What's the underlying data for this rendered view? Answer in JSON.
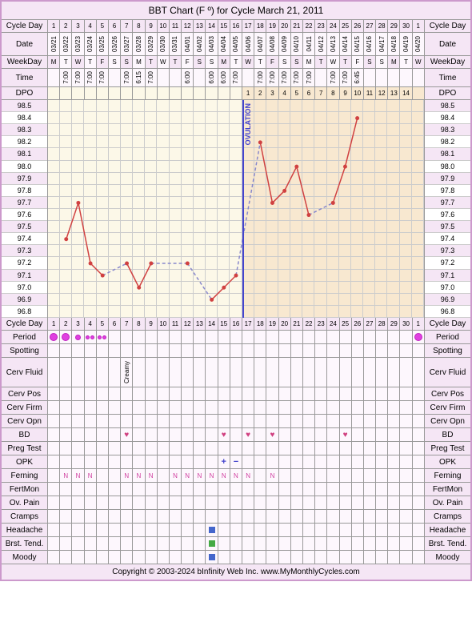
{
  "title": "BBT Chart (F º) for Cycle March 21, 2011",
  "labels": {
    "cycleDay": "Cycle Day",
    "date": "Date",
    "weekday": "WeekDay",
    "time": "Time",
    "dpo": "DPO",
    "period": "Period",
    "spotting": "Spotting",
    "cervFluid": "Cerv Fluid",
    "cervPos": "Cerv Pos",
    "cervFirm": "Cerv Firm",
    "cervOpn": "Cerv Opn",
    "bd": "BD",
    "pregTest": "Preg Test",
    "opk": "OPK",
    "ferning": "Ferning",
    "fertMon": "FertMon",
    "ovPain": "Ov. Pain",
    "cramps": "Cramps",
    "headache": "Headache",
    "brstTend": "Brst. Tend.",
    "moody": "Moody"
  },
  "footer": "Copyright © 2003-2024 bInfinity Web Inc.    www.MyMonthlyCycles.com",
  "days": 31,
  "cycleDays": [
    "1",
    "2",
    "3",
    "4",
    "5",
    "6",
    "7",
    "8",
    "9",
    "10",
    "11",
    "12",
    "13",
    "14",
    "15",
    "16",
    "17",
    "18",
    "19",
    "20",
    "21",
    "22",
    "23",
    "24",
    "25",
    "26",
    "27",
    "28",
    "29",
    "30",
    "1"
  ],
  "dates": [
    "03/21",
    "03/22",
    "03/23",
    "03/24",
    "03/25",
    "03/26",
    "03/27",
    "03/28",
    "03/29",
    "03/30",
    "03/31",
    "04/01",
    "04/02",
    "04/03",
    "04/04",
    "04/05",
    "04/06",
    "04/07",
    "04/08",
    "04/09",
    "04/10",
    "04/11",
    "04/12",
    "04/13",
    "04/14",
    "04/15",
    "04/16",
    "04/17",
    "04/18",
    "04/19",
    "04/20"
  ],
  "weekdays": [
    "M",
    "T",
    "W",
    "T",
    "F",
    "S",
    "S",
    "M",
    "T",
    "W",
    "T",
    "F",
    "S",
    "S",
    "M",
    "T",
    "W",
    "T",
    "F",
    "S",
    "S",
    "M",
    "T",
    "W",
    "T",
    "F",
    "S",
    "S",
    "M",
    "T",
    "W"
  ],
  "times": [
    "",
    "7:00",
    "7:00",
    "7:00",
    "7:00",
    "",
    "7:00",
    "6:15",
    "7:00",
    "",
    "",
    "6:00",
    "",
    "6:00",
    "6:00",
    "7:00",
    "",
    "7:00",
    "7:00",
    "7:00",
    "7:00",
    "7:00",
    "",
    "7:00",
    "7:00",
    "6:45",
    "",
    "",
    "",
    "",
    ""
  ],
  "dpo": [
    "",
    "",
    "",
    "",
    "",
    "",
    "",
    "",
    "",
    "",
    "",
    "",
    "",
    "",
    "",
    "",
    "1",
    "2",
    "3",
    "4",
    "5",
    "6",
    "7",
    "8",
    "9",
    "10",
    "11",
    "12",
    "13",
    "14",
    ""
  ],
  "temps": {
    "ymin": 96.8,
    "ymax": 98.5,
    "step": 0.1,
    "labels": [
      "98.5",
      "98.4",
      "98.3",
      "98.2",
      "98.1",
      "98.0",
      "97.9",
      "97.8",
      "97.7",
      "97.6",
      "97.5",
      "97.4",
      "97.3",
      "97.2",
      "97.1",
      "97.0",
      "96.9",
      "96.8"
    ],
    "values": [
      null,
      97.4,
      97.7,
      97.2,
      97.1,
      null,
      97.2,
      97.0,
      97.2,
      null,
      null,
      97.2,
      null,
      96.9,
      97.0,
      97.1,
      null,
      98.2,
      97.7,
      97.8,
      98.0,
      97.6,
      null,
      97.7,
      98.0,
      98.4,
      null,
      null,
      null,
      null,
      null
    ],
    "covline": 97.2,
    "ovulationDay": 16,
    "lutealStart": 16,
    "line_color": "#d04040",
    "point_color": "#d04040",
    "dash_color": "#8888cc",
    "pre_bg": "#fcf8e8",
    "post_bg": "#f8e8d0"
  },
  "period": [
    1,
    1,
    0.5,
    0.3,
    0.3,
    0,
    0,
    0,
    0,
    0,
    0,
    0,
    0,
    0,
    0,
    0,
    0,
    0,
    0,
    0,
    0,
    0,
    0,
    0,
    0,
    0,
    0,
    0,
    0,
    0,
    1
  ],
  "cervFluid": [
    "",
    "",
    "",
    "",
    "",
    "",
    "Creamy",
    "",
    "",
    "",
    "",
    "",
    "",
    "",
    "",
    "",
    "",
    "",
    "",
    "",
    "",
    "",
    "",
    "",
    "",
    "",
    "",
    "",
    "",
    "",
    ""
  ],
  "bd": [
    0,
    0,
    0,
    0,
    0,
    0,
    1,
    0,
    0,
    0,
    0,
    0,
    0,
    0,
    1,
    0,
    1,
    0,
    1,
    0,
    0,
    0,
    0,
    0,
    1,
    0,
    0,
    0,
    0,
    0,
    0
  ],
  "opk": [
    "",
    "",
    "",
    "",
    "",
    "",
    "",
    "",
    "",
    "",
    "",
    "",
    "",
    "",
    "+",
    "-",
    "",
    "",
    "",
    "",
    "",
    "",
    "",
    "",
    "",
    "",
    "",
    "",
    "",
    "",
    ""
  ],
  "ferning": [
    "",
    "N",
    "N",
    "N",
    "",
    "",
    "N",
    "N",
    "N",
    "",
    "N",
    "N",
    "N",
    "N",
    "N",
    "N",
    "N",
    "",
    "N",
    "",
    "",
    "",
    "",
    "",
    "",
    "",
    "",
    "",
    "",
    "",
    ""
  ],
  "headache": [
    0,
    0,
    0,
    0,
    0,
    0,
    0,
    0,
    0,
    0,
    0,
    0,
    0,
    1,
    0,
    0,
    0,
    0,
    0,
    0,
    0,
    0,
    0,
    0,
    0,
    0,
    0,
    0,
    0,
    0,
    0
  ],
  "brstTend": [
    0,
    0,
    0,
    0,
    0,
    0,
    0,
    0,
    0,
    0,
    0,
    0,
    0,
    1,
    0,
    0,
    0,
    0,
    0,
    0,
    0,
    0,
    0,
    0,
    0,
    0,
    0,
    0,
    0,
    0,
    0
  ],
  "moody": [
    0,
    0,
    0,
    0,
    0,
    0,
    0,
    0,
    0,
    0,
    0,
    0,
    0,
    1,
    0,
    0,
    0,
    0,
    0,
    0,
    0,
    0,
    0,
    0,
    0,
    0,
    0,
    0,
    0,
    0,
    0
  ]
}
